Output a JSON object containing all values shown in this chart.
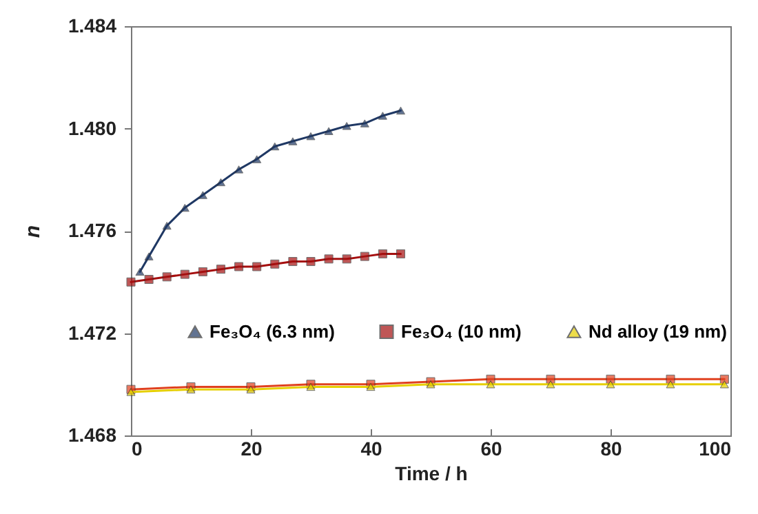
{
  "chart_data": {
    "type": "line",
    "xlabel": "Time / h",
    "ylabel": "n",
    "xlim": [
      0,
      100
    ],
    "xticks": [
      0,
      20,
      40,
      60,
      80,
      100
    ],
    "ylim": [
      1.468,
      1.484
    ],
    "yticks": [
      {
        "value": 1.468,
        "label": "1.468"
      },
      {
        "value": 1.472,
        "label": "1.472"
      },
      {
        "value": 1.476,
        "label": "1.476"
      },
      {
        "value": 1.48,
        "label": "1.480"
      },
      {
        "value": 1.484,
        "label": "1.484"
      }
    ],
    "grid": false,
    "legend": "bottom",
    "series": [
      {
        "name": "Fe₃O₄ (6.3 nm)",
        "color": "#1f3864",
        "marker": "triangle",
        "x": [
          1.5,
          3,
          6,
          9,
          12,
          15,
          18,
          21,
          24,
          27,
          30,
          33,
          36,
          39,
          42,
          45
        ],
        "values": [
          1.4744,
          1.475,
          1.4762,
          1.4769,
          1.4774,
          1.4779,
          1.4784,
          1.4788,
          1.4793,
          1.4795,
          1.4797,
          1.4799,
          1.4801,
          1.4802,
          1.4805,
          1.4807
        ]
      },
      {
        "name": "Fe₃O₄ (10 nm)",
        "color": "#a50f0f",
        "marker": "square",
        "x": [
          0,
          3,
          6,
          9,
          12,
          15,
          18,
          21,
          24,
          27,
          30,
          33,
          36,
          39,
          42,
          45
        ],
        "values": [
          1.474,
          1.4741,
          1.4742,
          1.4743,
          1.4744,
          1.4745,
          1.4746,
          1.4746,
          1.4747,
          1.4748,
          1.4748,
          1.4749,
          1.4749,
          1.475,
          1.4751,
          1.4751
        ]
      },
      {
        "color": "#e0401e",
        "marker": "square",
        "x": [
          0,
          10,
          20,
          30,
          40,
          50,
          60,
          70,
          80,
          90,
          99
        ],
        "values": [
          1.4698,
          1.4699,
          1.4699,
          1.47,
          1.47,
          1.4701,
          1.4702,
          1.4702,
          1.4702,
          1.4702,
          1.4702
        ]
      },
      {
        "name": "Nd alloy (19 nm)",
        "color": "#e6cf00",
        "marker": "triangle",
        "x": [
          0,
          10,
          20,
          30,
          40,
          50,
          60,
          70,
          80,
          90,
          99
        ],
        "values": [
          1.4697,
          1.4698,
          1.4698,
          1.4699,
          1.4699,
          1.47,
          1.47,
          1.47,
          1.47,
          1.47,
          1.47
        ]
      }
    ]
  }
}
